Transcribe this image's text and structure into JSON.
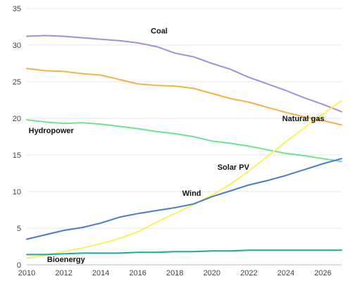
{
  "chart_data": {
    "type": "line",
    "title": "",
    "xlabel": "",
    "ylabel": "",
    "xlim": [
      2010,
      2027
    ],
    "ylim": [
      0,
      35
    ],
    "x_ticks": [
      2010,
      2012,
      2014,
      2016,
      2018,
      2020,
      2022,
      2024,
      2026
    ],
    "y_ticks": [
      0,
      5,
      10,
      15,
      20,
      25,
      30,
      35
    ],
    "grid": "horizontal",
    "legend": "none",
    "x": [
      2010,
      2011,
      2012,
      2013,
      2014,
      2015,
      2016,
      2017,
      2018,
      2019,
      2020,
      2021,
      2022,
      2023,
      2024,
      2025,
      2026,
      2027
    ],
    "series": [
      {
        "name": "Coal",
        "color": "#a88ce0",
        "values": [
          31.2,
          31.3,
          31.2,
          31.0,
          30.8,
          30.6,
          30.3,
          29.8,
          28.9,
          28.4,
          27.5,
          26.7,
          25.6,
          24.7,
          23.8,
          22.8,
          21.9,
          20.9
        ],
        "label_at": [
          2016.7,
          31.6
        ]
      },
      {
        "name": "Natural gas",
        "color": "#f2b24a",
        "values": [
          26.8,
          26.5,
          26.4,
          26.1,
          25.9,
          25.3,
          24.7,
          24.5,
          24.4,
          24.1,
          23.4,
          22.7,
          22.2,
          21.5,
          20.8,
          20.2,
          19.7,
          19.1
        ],
        "label_at": [
          2023.8,
          19.6
        ]
      },
      {
        "name": "Hydropower",
        "color": "#6fe38e",
        "values": [
          19.8,
          19.5,
          19.3,
          19.4,
          19.2,
          18.9,
          18.6,
          18.2,
          17.9,
          17.5,
          16.9,
          16.6,
          16.2,
          15.7,
          15.2,
          14.9,
          14.5,
          14.1
        ],
        "label_at": [
          2010.1,
          18.0
        ]
      },
      {
        "name": "Solar PV",
        "color": "#fcf25b",
        "values": [
          0.9,
          1.3,
          1.8,
          2.3,
          2.9,
          3.6,
          4.5,
          5.8,
          7.0,
          8.2,
          9.5,
          11.0,
          12.8,
          14.8,
          16.8,
          18.7,
          20.6,
          22.4
        ],
        "label_at": [
          2020.3,
          13.0
        ]
      },
      {
        "name": "Wind",
        "color": "#4a7bc6",
        "values": [
          3.5,
          4.1,
          4.7,
          5.1,
          5.7,
          6.5,
          7.0,
          7.4,
          7.8,
          8.3,
          9.3,
          10.1,
          10.9,
          11.5,
          12.2,
          13.0,
          13.8,
          14.5
        ],
        "label_at": [
          2018.4,
          9.4
        ]
      },
      {
        "name": "Bioenergy",
        "color": "#19ab9b",
        "values": [
          1.4,
          1.4,
          1.5,
          1.6,
          1.6,
          1.6,
          1.7,
          1.7,
          1.8,
          1.8,
          1.9,
          1.9,
          2.0,
          2.0,
          2.0,
          2.0,
          2.0,
          2.0
        ],
        "label_at": [
          2011.1,
          0.4
        ]
      }
    ]
  }
}
